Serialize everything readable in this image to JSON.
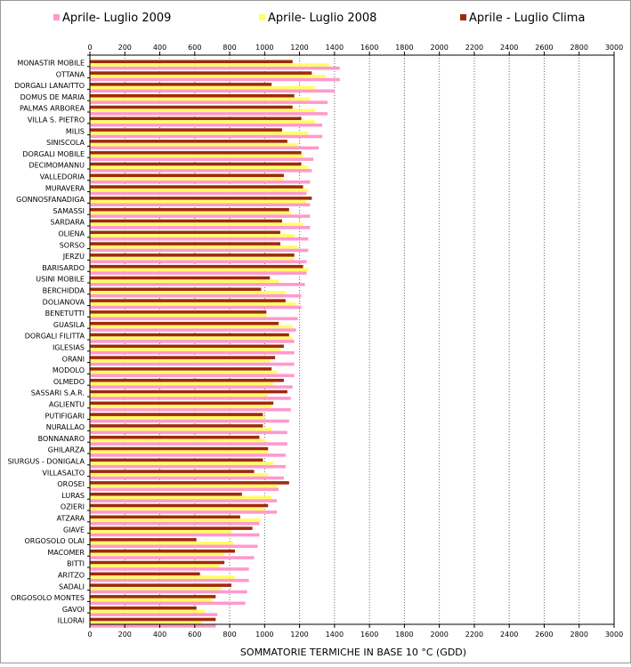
{
  "chart_data": {
    "type": "bar",
    "orientation": "horizontal",
    "xlabel": "SOMMATORIE TERMICHE IN BASE 10 °C (GDD)",
    "xlim": [
      0,
      3000
    ],
    "xticks": [
      0,
      200,
      400,
      600,
      800,
      1000,
      1200,
      1400,
      1600,
      1800,
      2000,
      2200,
      2400,
      2600,
      2800,
      3000
    ],
    "grid": true,
    "legend_position": "top",
    "categories": [
      "MONASTIR MOBILE",
      "OTTANA",
      "DORGALI LANAITTO",
      "DOMUS DE MARIA",
      "PALMAS ARBOREA",
      "VILLA S. PIETRO",
      "MILIS",
      "SINISCOLA",
      "DORGALI MOBILE",
      "DECIMOMANNU",
      "VALLEDORIA",
      "MURAVERA",
      "GONNOSFANADIGA",
      "SAMASSI",
      "SARDARA",
      "OLIENA",
      "SORSO",
      "JERZU",
      "BARISARDO",
      "USINI MOBILE",
      "BERCHIDDA",
      "DOLIANOVA",
      "BENETUTTI",
      "GUASILA",
      "DORGALI FILITTA",
      "IGLESIAS",
      "ORANI",
      "MODOLO",
      "OLMEDO",
      "SASSARI S.A.R.",
      "AGLIENTU",
      "PUTIFIGARI",
      "NURALLAO",
      "BONNANARO",
      "GHILARZA",
      "SIURGUS - DONIGALA",
      "VILLASALTO",
      "OROSEI",
      "LURAS",
      "OZIERI",
      "ATZARA",
      "GIAVE",
      "ORGOSOLO OLAI",
      "MACOMER",
      "BITTI",
      "ARITZO",
      "SADALI",
      "ORGOSOLO MONTES",
      "GAVOI",
      "ILLORAI"
    ],
    "series": [
      {
        "name": "Aprile - Luglio Clima",
        "color": "#9e2a0c",
        "values": [
          1160,
          1270,
          1040,
          1170,
          1160,
          1210,
          1100,
          1130,
          1210,
          1210,
          1110,
          1220,
          1270,
          1140,
          1100,
          1090,
          1090,
          1170,
          1220,
          1030,
          980,
          1120,
          1010,
          1080,
          1140,
          1110,
          1060,
          1040,
          1110,
          1130,
          1050,
          990,
          990,
          970,
          1020,
          990,
          940,
          1140,
          870,
          1020,
          860,
          930,
          610,
          830,
          770,
          630,
          810,
          720,
          610,
          720
        ]
      },
      {
        "name": "Aprile- Luglio 2008",
        "color": "#ffff66",
        "values": [
          1370,
          1350,
          1290,
          1260,
          1290,
          1290,
          1250,
          1190,
          1220,
          1250,
          1110,
          1250,
          1240,
          1150,
          1220,
          1170,
          1190,
          1170,
          1250,
          1080,
          1120,
          1180,
          1010,
          1160,
          1160,
          1090,
          1030,
          1070,
          1050,
          1020,
          1040,
          1000,
          1040,
          1010,
          1020,
          1050,
          1020,
          1070,
          1040,
          1000,
          980,
          810,
          820,
          770,
          740,
          830,
          750,
          700,
          660,
          640
        ]
      },
      {
        "name": "Aprile- Luglio 2009",
        "color": "#ff99cc",
        "values": [
          1430,
          1430,
          1400,
          1360,
          1360,
          1330,
          1330,
          1310,
          1280,
          1270,
          1260,
          1240,
          1260,
          1260,
          1260,
          1250,
          1250,
          1240,
          1240,
          1230,
          1210,
          1210,
          1190,
          1180,
          1170,
          1170,
          1170,
          1170,
          1160,
          1150,
          1150,
          1140,
          1130,
          1130,
          1120,
          1120,
          1110,
          1080,
          1070,
          1070,
          970,
          970,
          960,
          940,
          910,
          910,
          900,
          890,
          730,
          720
        ]
      }
    ],
    "legend": [
      "Aprile- Luglio 2009",
      "Aprile- Luglio 2008",
      "Aprile - Luglio Clima"
    ]
  }
}
